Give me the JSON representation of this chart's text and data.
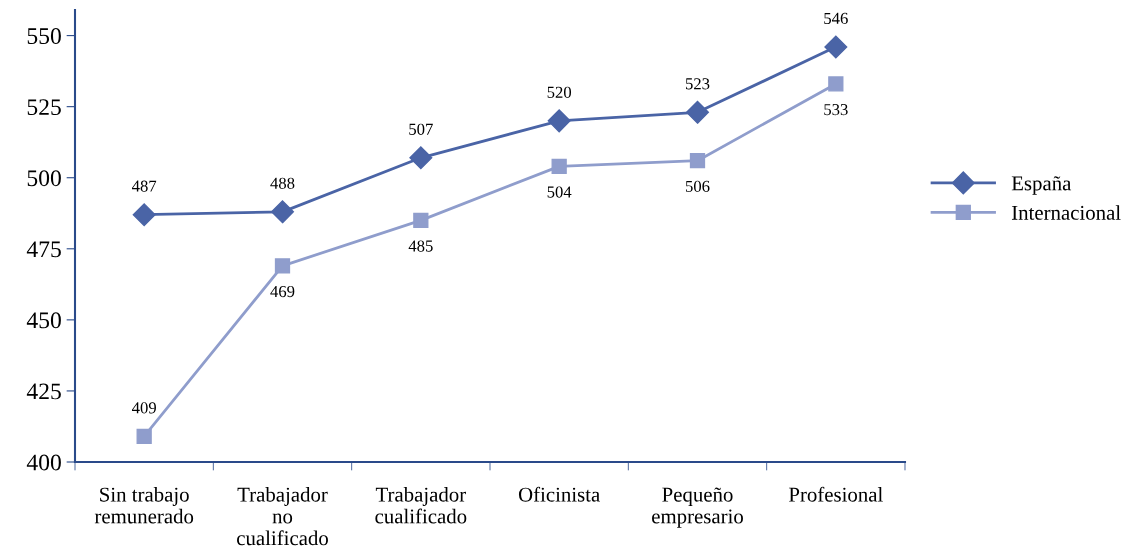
{
  "chart_data": {
    "type": "line",
    "categories": [
      "Sin trabajo\nremunerado",
      "Trabajador\nno\ncualificado",
      "Trabajador\ncualificado",
      "Oficinista",
      "Pequeño\nempresario",
      "Profesional"
    ],
    "series": [
      {
        "name": "España",
        "color": "#4a64a6",
        "marker": "diamond",
        "values": [
          487,
          488,
          507,
          520,
          523,
          546
        ]
      },
      {
        "name": "Internacional",
        "color": "#8f9dcc",
        "marker": "square",
        "values": [
          409,
          469,
          485,
          504,
          506,
          533
        ]
      }
    ],
    "ylim": [
      400,
      559
    ],
    "yticks": [
      400,
      425,
      450,
      475,
      500,
      525,
      550
    ],
    "data_labels": true,
    "legend": "right",
    "grid": false
  }
}
